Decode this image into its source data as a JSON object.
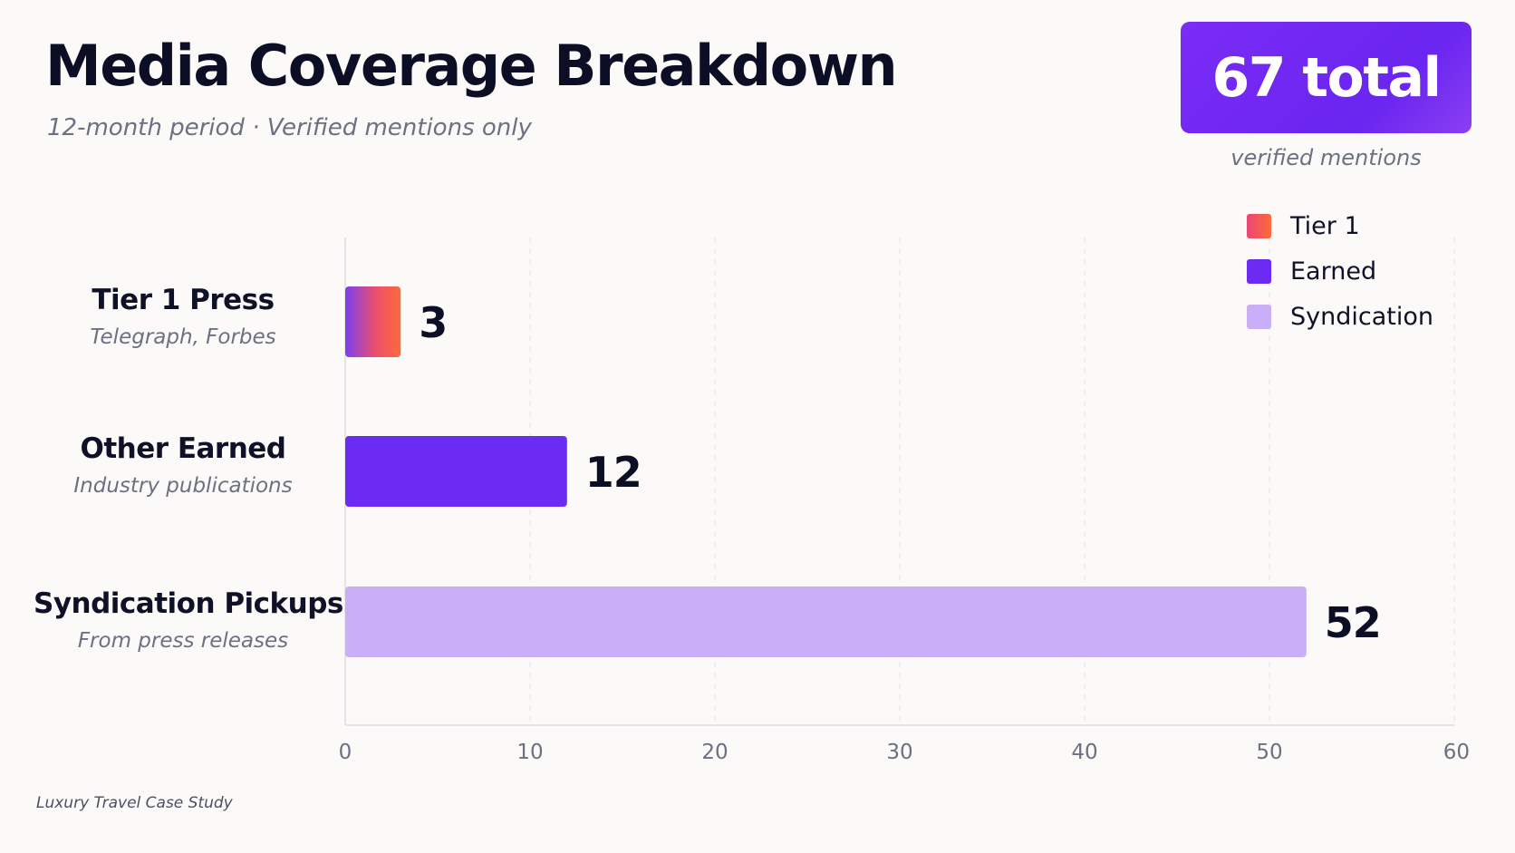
{
  "header": {
    "title": "Media Coverage Breakdown",
    "subtitle": "12-month period · Verified mentions only"
  },
  "summary": {
    "total_label": "67 total",
    "caption": "verified mentions"
  },
  "legend": [
    {
      "label": "Tier 1",
      "color": "#f4584a"
    },
    {
      "label": "Earned",
      "color": "#6b2bf2"
    },
    {
      "label": "Syndication",
      "color": "#c9aef8"
    }
  ],
  "categories": [
    {
      "name": "Tier 1 Press",
      "description": "Telegraph, Forbes"
    },
    {
      "name": "Other Earned",
      "description": "Industry publications"
    },
    {
      "name": "Syndication Pickups",
      "description": "From press releases"
    }
  ],
  "footer": "Luxury Travel Case Study",
  "chart_data": {
    "type": "bar",
    "orientation": "horizontal",
    "categories": [
      "Tier 1 Press",
      "Other Earned",
      "Syndication Pickups"
    ],
    "values": [
      3,
      12,
      52
    ],
    "data_labels": [
      "3",
      "12",
      "52"
    ],
    "colors": [
      "#f4584a",
      "#6b2bf2",
      "#c9aef8"
    ],
    "xlim": [
      0,
      60
    ],
    "xticks": [
      0,
      10,
      20,
      30,
      40,
      50,
      60
    ],
    "grid": "vertical-dashed",
    "legend_position": "top-right"
  }
}
